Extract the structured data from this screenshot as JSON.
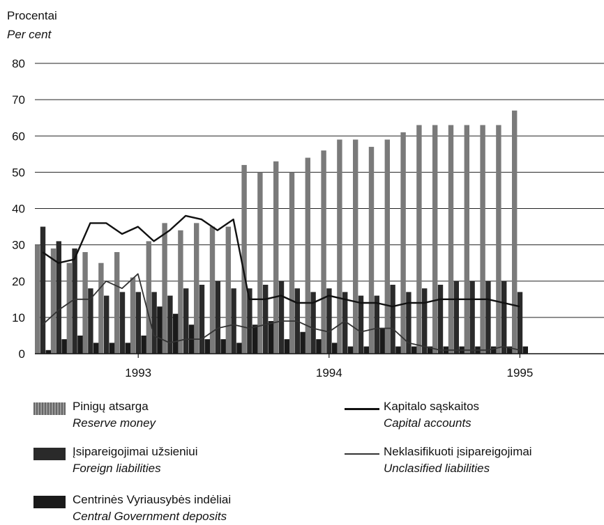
{
  "chart_data": {
    "type": "bar",
    "ylabel": "Procentai",
    "ylabel_en": "Per cent",
    "ylim": [
      0,
      80
    ],
    "yticks": [
      "0",
      "10",
      "20",
      "30",
      "40",
      "50",
      "60",
      "70",
      "80"
    ],
    "xtick_labels": [
      {
        "label": "1993",
        "index": 6.5
      },
      {
        "label": "1994",
        "index": 18.5
      },
      {
        "label": "1995",
        "index": 30.5
      }
    ],
    "grid": true,
    "legend_placement": "bottom",
    "n_periods": 31,
    "series": [
      {
        "name": "Pinigų atsarga",
        "name_en": "Reserve money",
        "kind": "bar",
        "color": "#7a7a7a",
        "values": [
          30,
          29,
          25,
          28,
          25,
          28,
          21,
          31,
          36,
          34,
          36,
          35,
          35,
          52,
          50,
          53,
          50,
          54,
          56,
          59,
          59,
          57,
          59,
          61,
          63,
          63,
          63,
          63,
          63,
          63,
          67
        ]
      },
      {
        "name": "Įsipareigojimai užsieniui",
        "name_en": "Foreign liabilities",
        "kind": "bar",
        "color": "#2a2a2a",
        "values": [
          35,
          31,
          29,
          18,
          16,
          17,
          17,
          17,
          16,
          18,
          19,
          20,
          18,
          18,
          19,
          20,
          18,
          17,
          18,
          17,
          16,
          16,
          19,
          17,
          18,
          19,
          20,
          20,
          20,
          20,
          17
        ]
      },
      {
        "name": "Centrinės Vyriausybės indėliai",
        "name_en": "Central Government deposits",
        "kind": "bar",
        "color": "#1a1a1a",
        "values": [
          1,
          4,
          5,
          3,
          3,
          3,
          5,
          13,
          11,
          8,
          4,
          4,
          3,
          8,
          9,
          4,
          6,
          4,
          3,
          2,
          2,
          7,
          2,
          2,
          2,
          2,
          2,
          2,
          2,
          2,
          2
        ]
      },
      {
        "name": "Kapitalo sąskaitos",
        "name_en": "Capital accounts",
        "kind": "line",
        "color": "#111111",
        "values": [
          28,
          25,
          26,
          36,
          36,
          33,
          35,
          31,
          34,
          38,
          37,
          34,
          37,
          15,
          15,
          16,
          14,
          14,
          16,
          15,
          14,
          14,
          13,
          14,
          14,
          15,
          15,
          15,
          15,
          14,
          13
        ]
      },
      {
        "name": "Neklasifikuoti įsipareigojimai",
        "name_en": "Unclasified liabilities",
        "kind": "line",
        "color": "#333333",
        "values": [
          8,
          12,
          15,
          15,
          20,
          18,
          22,
          5,
          3,
          4,
          4,
          7,
          8,
          7,
          8,
          9,
          9,
          7,
          6,
          9,
          6,
          7,
          7,
          3,
          2,
          1,
          1,
          1,
          1,
          2,
          1
        ]
      }
    ]
  }
}
